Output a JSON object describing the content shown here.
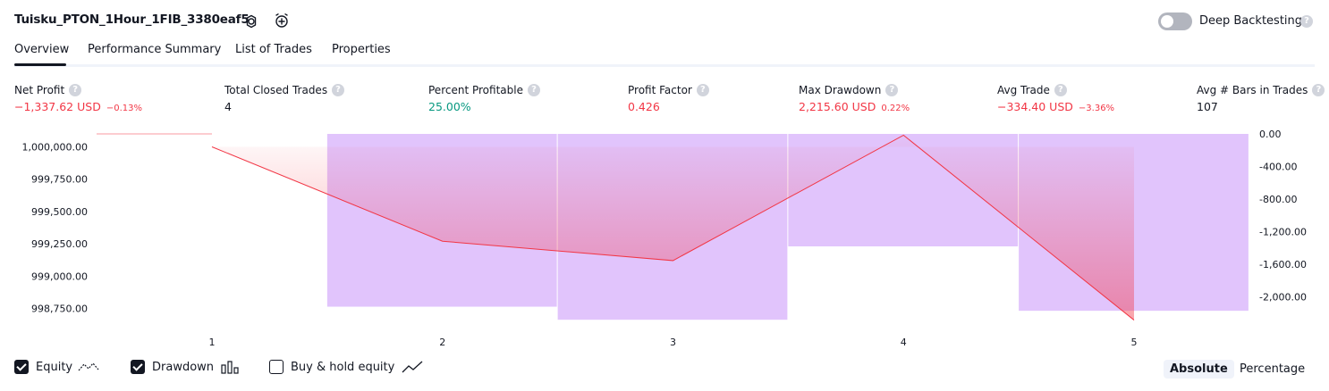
{
  "header": {
    "title": "Tuisku_PTON_1Hour_1FIB_3380eaf5",
    "settings_icon": "gear-icon",
    "alert_icon": "alarm-add-icon",
    "deep_backtesting_label": "Deep Backtesting",
    "deep_backtesting_enabled": false,
    "help_glyph": "?"
  },
  "tabs": [
    {
      "label": "Overview",
      "active": true
    },
    {
      "label": "Performance Summary",
      "active": false
    },
    {
      "label": "List of Trades",
      "active": false
    },
    {
      "label": "Properties",
      "active": false
    }
  ],
  "metrics": {
    "net_profit": {
      "label": "Net Profit",
      "value": "−1,337.62 USD",
      "pct": "−0.13%"
    },
    "total_closed_trades": {
      "label": "Total Closed Trades",
      "value": "4"
    },
    "percent_profitable": {
      "label": "Percent Profitable",
      "value": "25.00%"
    },
    "profit_factor": {
      "label": "Profit Factor",
      "value": "0.426"
    },
    "max_drawdown": {
      "label": "Max Drawdown",
      "value": "2,215.60 USD",
      "pct": "0.22%"
    },
    "avg_trade": {
      "label": "Avg Trade",
      "value": "−334.40 USD",
      "pct": "−3.36%"
    },
    "avg_bars": {
      "label": "Avg # Bars in Trades",
      "value": "107"
    }
  },
  "chart_data": {
    "type": "line",
    "x": [
      1,
      2,
      3,
      4,
      5
    ],
    "x_tick_labels": [
      "1",
      "2",
      "3",
      "4",
      "5"
    ],
    "left_axis": {
      "ticks": [
        "1,000,000.00",
        "999,750.00",
        "999,500.00",
        "999,250.00",
        "999,000.00",
        "998,750.00"
      ],
      "tick_values": [
        1000000,
        999750,
        999500,
        999250,
        999000,
        998750
      ],
      "range": [
        998650,
        1000100
      ]
    },
    "right_axis": {
      "ticks": [
        "0.00",
        "-400.00",
        "-800.00",
        "-1,200.00",
        "-1,600.00",
        "-2,000.00"
      ],
      "tick_values": [
        0,
        -400,
        -800,
        -1200,
        -1600,
        -2000
      ],
      "range": [
        -2300,
        0
      ]
    },
    "series": [
      {
        "name": "Equity",
        "axis": "left",
        "color": "#f23645",
        "values": [
          1000000,
          999270,
          999120,
          1000090,
          998660
        ]
      },
      {
        "name": "Drawdown",
        "axis": "right",
        "color": "#e1c4fc",
        "x": [
          2,
          3,
          4,
          5
        ],
        "values": [
          -2120,
          -2280,
          -1380,
          -2170
        ]
      },
      {
        "name": "Buy & hold equity",
        "visible": false
      }
    ],
    "grid": false
  },
  "legend": {
    "items": [
      {
        "label": "Equity",
        "checked": true,
        "icon": "equity-line-icon"
      },
      {
        "label": "Drawdown",
        "checked": true,
        "icon": "drawdown-bars-icon"
      },
      {
        "label": "Buy & hold equity",
        "checked": false,
        "icon": "buy-hold-line-icon"
      }
    ]
  },
  "modes": {
    "absolute": "Absolute",
    "percentage": "Percentage",
    "active": "absolute"
  },
  "colors": {
    "negative": "#f23645",
    "positive": "#089981",
    "drawdown_fill": "#e1c4fc",
    "equity_line": "#f23645",
    "equity_fill": "#f7a8b8"
  }
}
